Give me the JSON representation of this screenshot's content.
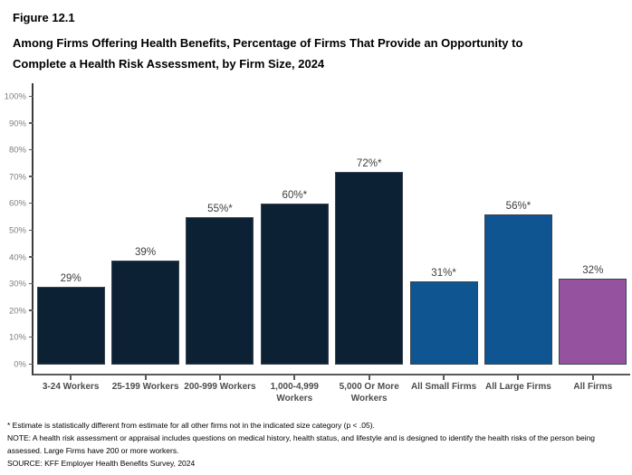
{
  "header": {
    "figure_label": "Figure 12.1",
    "title_line1": "Among Firms Offering Health Benefits, Percentage of Firms That Provide an Opportunity to",
    "title_line2": "Complete a Health Risk Assessment, by Firm Size, 2024"
  },
  "chart_data": {
    "type": "bar",
    "title": "Among Firms Offering Health Benefits, Percentage of Firms That Provide an Opportunity to Complete a Health Risk Assessment, by Firm Size, 2024",
    "categories": [
      "3-24 Workers",
      "25-199 Workers",
      "200-999 Workers",
      "1,000-4,999 Workers",
      "5,000 Or More Workers",
      "All Small Firms",
      "All Large Firms",
      "All Firms"
    ],
    "values": [
      29,
      39,
      55,
      60,
      72,
      31,
      56,
      32
    ],
    "bar_labels": [
      "29%",
      "39%",
      "55%*",
      "60%*",
      "72%*",
      "31%*",
      "56%*",
      "32%"
    ],
    "bar_colors": [
      "#0c2234",
      "#0c2234",
      "#0c2234",
      "#0c2234",
      "#0c2234",
      "#0f5591",
      "#0f5591",
      "#94529f"
    ],
    "xlabel": "",
    "ylabel": "",
    "ylim": [
      0,
      100
    ],
    "ytick_labels": [
      "0%",
      "10%",
      "20%",
      "30%",
      "40%",
      "50%",
      "60%",
      "70%",
      "80%",
      "90%",
      "100%"
    ],
    "grid": false,
    "legend": "none",
    "colors": {
      "dark_navy": "#0c2234",
      "medium_blue": "#0f5591",
      "purple": "#94529f"
    }
  },
  "footnotes": {
    "asterisk_note": "* Estimate is statistically different from estimate for all other firms not in the indicated size category (p < .05).",
    "note": "NOTE: A health risk assessment or appraisal includes questions on medical history, health status, and lifestyle and is designed to identify the health risks of the person being assessed.  Large Firms have 200 or more workers.",
    "source": "SOURCE: KFF Employer Health Benefits Survey, 2024"
  }
}
